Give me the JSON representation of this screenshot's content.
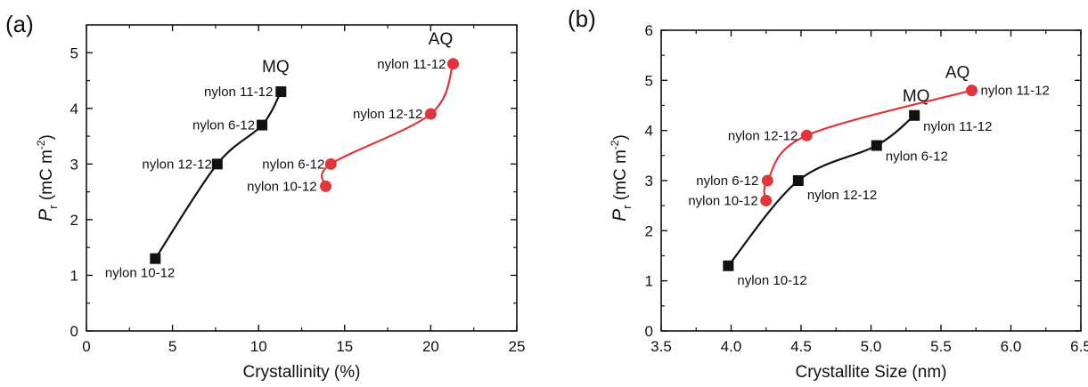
{
  "chart_data": [
    {
      "panel": "(a)",
      "type": "scatter",
      "xlabel": "Crystallinity (%)",
      "ylabel": "P_r (mC m^-2)",
      "ylabel_main": "P",
      "ylabel_sub": "r",
      "ylabel_rest": " (mC m",
      "ylabel_sup": "-2",
      "ylabel_close": ")",
      "xlim": [
        0,
        25
      ],
      "ylim": [
        0,
        5.5
      ],
      "xticks": [
        "0",
        "5",
        "10",
        "15",
        "20",
        "25"
      ],
      "yticks": [
        "0",
        "1",
        "2",
        "3",
        "4",
        "5"
      ],
      "grid": false,
      "series": [
        {
          "name": "MQ",
          "marker": "square",
          "color": "#111111",
          "points": [
            {
              "x": 4.0,
              "y": 1.3,
              "label": "nylon 10-12"
            },
            {
              "x": 7.6,
              "y": 3.0,
              "label": "nylon 12-12"
            },
            {
              "x": 10.2,
              "y": 3.7,
              "label": "nylon 6-12"
            },
            {
              "x": 11.3,
              "y": 4.3,
              "label": "nylon 11-12"
            }
          ]
        },
        {
          "name": "AQ",
          "marker": "circle",
          "color": "#e0353a",
          "points": [
            {
              "x": 13.9,
              "y": 2.6,
              "label": "nylon 10-12"
            },
            {
              "x": 14.2,
              "y": 3.0,
              "label": "nylon 6-12"
            },
            {
              "x": 20.0,
              "y": 3.9,
              "label": "nylon 12-12"
            },
            {
              "x": 21.3,
              "y": 4.8,
              "label": "nylon 11-12"
            }
          ]
        }
      ]
    },
    {
      "panel": "(b)",
      "type": "scatter",
      "xlabel": "Crystallite Size (nm)",
      "ylabel": "P_r (mC m^-2)",
      "ylabel_main": "P",
      "ylabel_sub": "r",
      "ylabel_rest": " (mC m",
      "ylabel_sup": "-2",
      "ylabel_close": ")",
      "xlim": [
        3.5,
        6.5
      ],
      "ylim": [
        0,
        6
      ],
      "xticks": [
        "3.5",
        "4.0",
        "4.5",
        "5.0",
        "5.5",
        "6.0",
        "6.5"
      ],
      "yticks": [
        "0",
        "1",
        "2",
        "3",
        "4",
        "5",
        "6"
      ],
      "grid": false,
      "series": [
        {
          "name": "MQ",
          "marker": "square",
          "color": "#111111",
          "points": [
            {
              "x": 3.98,
              "y": 1.3,
              "label": "nylon 10-12"
            },
            {
              "x": 4.48,
              "y": 3.0,
              "label": "nylon 12-12"
            },
            {
              "x": 5.04,
              "y": 3.7,
              "label": "nylon 6-12"
            },
            {
              "x": 5.31,
              "y": 4.3,
              "label": "nylon 11-12"
            }
          ]
        },
        {
          "name": "AQ",
          "marker": "circle",
          "color": "#e0353a",
          "points": [
            {
              "x": 4.25,
              "y": 2.6,
              "label": "nylon 10-12"
            },
            {
              "x": 4.26,
              "y": 3.0,
              "label": "nylon 6-12"
            },
            {
              "x": 4.54,
              "y": 3.9,
              "label": "nylon 12-12"
            },
            {
              "x": 5.72,
              "y": 4.8,
              "label": "nylon 11-12"
            }
          ]
        }
      ]
    }
  ]
}
